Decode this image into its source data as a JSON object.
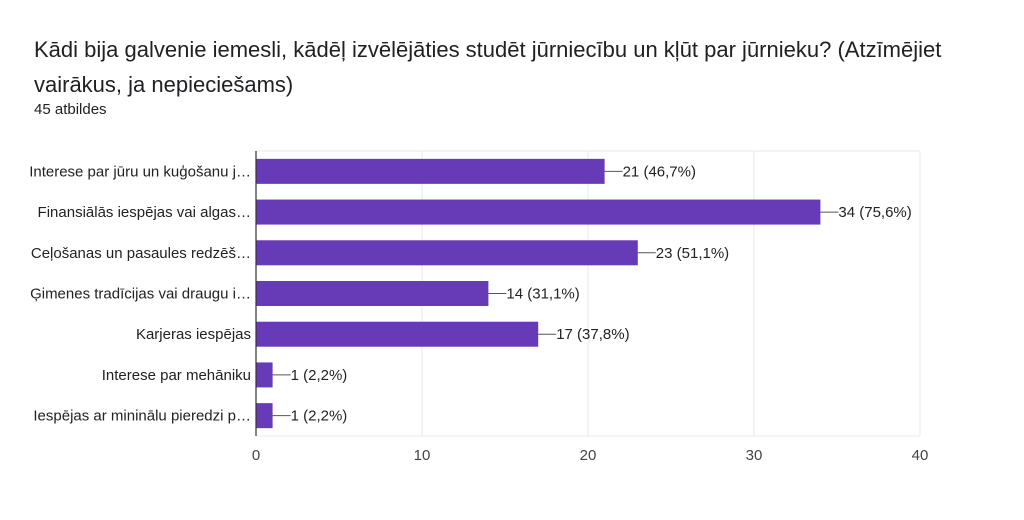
{
  "header": {
    "title": "Kādi bija galvenie iemesli, kādēļ izvēlējāties studēt jūrniecību un kļūt par jūrnieku? (Atzīmējiet vairākus, ja nepieciešams)",
    "responses": "45 atbildes"
  },
  "colors": {
    "bar": "#673ab7",
    "grid": "#e8e8e8",
    "axis": "#333333",
    "leader": "#555555"
  },
  "chart_data": {
    "type": "bar",
    "orientation": "horizontal",
    "categories": [
      "Interese par jūru un kuģošanu j…",
      "Finansiālās iespējas vai algas…",
      "Ceļošanas un pasaules redzēš…",
      "Ģimenes tradīcijas vai draugu i…",
      "Karjeras iespējas",
      "Interese par mehāniku",
      "Iespējas ar mininālu pieredzi p…"
    ],
    "values": [
      21,
      34,
      23,
      14,
      17,
      1,
      1
    ],
    "data_labels": [
      "21 (46,7%)",
      "34 (75,6%)",
      "23 (51,1%)",
      "14 (31,1%)",
      "17 (37,8%)",
      "1 (2,2%)",
      "1 (2,2%)"
    ],
    "xlim": [
      0,
      40
    ],
    "xticks": [
      "0",
      "10",
      "20",
      "30",
      "40"
    ],
    "grid": true
  }
}
